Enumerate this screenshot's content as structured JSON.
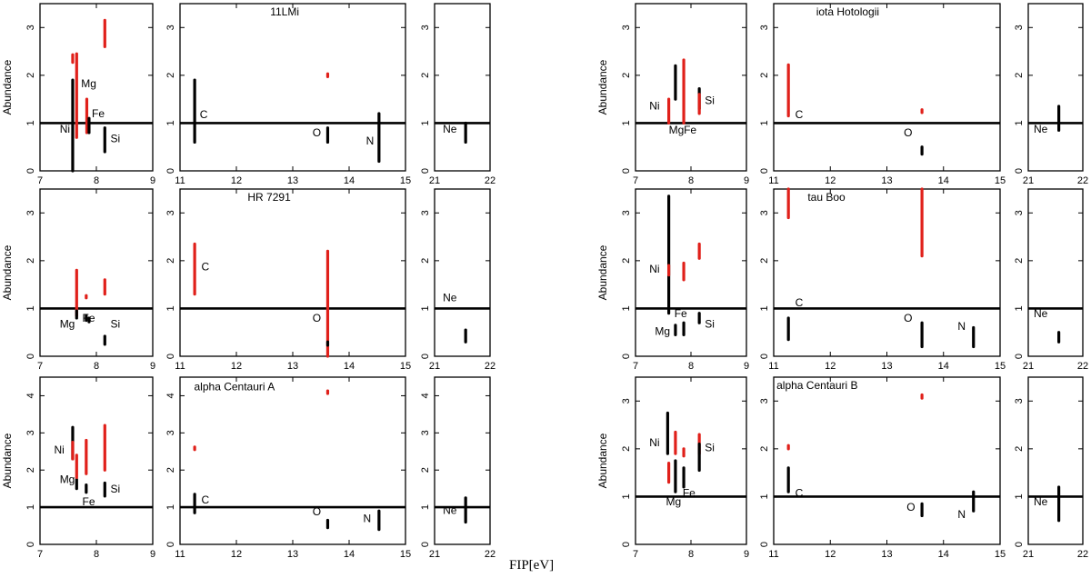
{
  "figure": {
    "xlabel": "FIP[eV]",
    "ylabel": "Abundance"
  },
  "colors": {
    "axis": "#000000",
    "black_bar": "#000000",
    "red_bar": "#e0201a"
  },
  "chart_data": [
    {
      "type": "scatter",
      "star": "11LMi",
      "ylim": [
        0,
        3.5
      ],
      "yticks": [
        0,
        1,
        2,
        3
      ],
      "panels": {
        "a": {
          "xlim": [
            7,
            9
          ],
          "xticks": [
            7,
            8,
            9
          ]
        },
        "b": {
          "xlim": [
            11,
            15
          ],
          "xticks": [
            11,
            12,
            13,
            14,
            15
          ]
        },
        "c": {
          "xlim": [
            21,
            22
          ],
          "xticks": [
            21,
            22
          ]
        }
      },
      "bars": [
        {
          "x": 7.58,
          "lo": 0.0,
          "hi": 1.9,
          "c": "black"
        },
        {
          "x": 7.58,
          "lo": 2.27,
          "hi": 2.43,
          "c": "red"
        },
        {
          "x": 7.65,
          "lo": 0.7,
          "hi": 2.45,
          "c": "red"
        },
        {
          "x": 7.83,
          "lo": 0.8,
          "hi": 1.5,
          "c": "red"
        },
        {
          "x": 7.87,
          "lo": 0.8,
          "hi": 1.1,
          "c": "black"
        },
        {
          "x": 8.15,
          "lo": 2.6,
          "hi": 3.15,
          "c": "red"
        },
        {
          "x": 8.15,
          "lo": 0.4,
          "hi": 0.9,
          "c": "black"
        },
        {
          "x": 11.26,
          "lo": 0.6,
          "hi": 1.9,
          "c": "black"
        },
        {
          "x": 13.62,
          "lo": 1.97,
          "hi": 2.03,
          "c": "red"
        },
        {
          "x": 13.62,
          "lo": 0.6,
          "hi": 0.9,
          "c": "black"
        },
        {
          "x": 14.53,
          "lo": 0.2,
          "hi": 1.2,
          "c": "black"
        },
        {
          "x": 21.56,
          "lo": 0.6,
          "hi": 1.0,
          "c": "black"
        }
      ],
      "labels": [
        {
          "p": "a",
          "x": 7.35,
          "y": 0.8,
          "t": "Ni"
        },
        {
          "p": "a",
          "x": 7.73,
          "y": 1.75,
          "t": "Mg"
        },
        {
          "p": "a",
          "x": 7.92,
          "y": 1.12,
          "t": "Fe"
        },
        {
          "p": "a",
          "x": 8.25,
          "y": 0.6,
          "t": "Si"
        },
        {
          "p": "b",
          "x": 11.35,
          "y": 1.1,
          "t": "C"
        },
        {
          "p": "b",
          "x": 13.35,
          "y": 0.72,
          "t": "O"
        },
        {
          "p": "b",
          "x": 14.3,
          "y": 0.55,
          "t": "N"
        },
        {
          "p": "c",
          "x": 21.15,
          "y": 0.8,
          "t": "Ne"
        },
        {
          "p": "b",
          "x": 12.6,
          "y": 3.25,
          "t": "11LMi"
        }
      ]
    },
    {
      "type": "scatter",
      "star": "iota Hotologii",
      "ylim": [
        0,
        3.5
      ],
      "yticks": [
        0,
        1,
        2,
        3
      ],
      "panels": {
        "a": {
          "xlim": [
            7,
            9
          ],
          "xticks": [
            7,
            8,
            9
          ]
        },
        "b": {
          "xlim": [
            11,
            15
          ],
          "xticks": [
            11,
            12,
            13,
            14,
            15
          ]
        },
        "c": {
          "xlim": [
            21,
            22
          ],
          "xticks": [
            21,
            22
          ]
        }
      },
      "bars": [
        {
          "x": 7.6,
          "lo": 1.0,
          "hi": 1.5,
          "c": "red"
        },
        {
          "x": 7.72,
          "lo": 1.5,
          "hi": 2.2,
          "c": "black"
        },
        {
          "x": 7.87,
          "lo": 1.0,
          "hi": 2.32,
          "c": "red"
        },
        {
          "x": 8.15,
          "lo": 1.3,
          "hi": 1.72,
          "c": "black"
        },
        {
          "x": 8.15,
          "lo": 1.2,
          "hi": 1.6,
          "c": "red"
        },
        {
          "x": 11.26,
          "lo": 1.15,
          "hi": 2.22,
          "c": "red"
        },
        {
          "x": 13.62,
          "lo": 1.22,
          "hi": 1.28,
          "c": "red"
        },
        {
          "x": 13.62,
          "lo": 0.35,
          "hi": 0.5,
          "c": "black"
        },
        {
          "x": 21.56,
          "lo": 0.85,
          "hi": 1.35,
          "c": "black"
        }
      ],
      "labels": [
        {
          "p": "a",
          "x": 7.25,
          "y": 1.28,
          "t": "Ni"
        },
        {
          "p": "a",
          "x": 7.6,
          "y": 0.78,
          "t": "Mg"
        },
        {
          "p": "a",
          "x": 7.87,
          "y": 0.78,
          "t": "Fe"
        },
        {
          "p": "a",
          "x": 8.25,
          "y": 1.4,
          "t": "Si"
        },
        {
          "p": "b",
          "x": 11.38,
          "y": 1.1,
          "t": "C"
        },
        {
          "p": "b",
          "x": 13.3,
          "y": 0.72,
          "t": "O"
        },
        {
          "p": "c",
          "x": 21.1,
          "y": 0.8,
          "t": "Ne"
        },
        {
          "p": "b",
          "x": 11.75,
          "y": 3.25,
          "t": "iota Hotologii"
        }
      ]
    },
    {
      "type": "scatter",
      "star": "HR 7291",
      "ylim": [
        0,
        3.5
      ],
      "yticks": [
        0,
        1,
        2,
        3
      ],
      "panels": {
        "a": {
          "xlim": [
            7,
            9
          ],
          "xticks": [
            7,
            8,
            9
          ]
        },
        "b": {
          "xlim": [
            11,
            15
          ],
          "xticks": [
            11,
            12,
            13,
            14,
            15
          ]
        },
        "c": {
          "xlim": [
            21,
            22
          ],
          "xticks": [
            21,
            22
          ]
        }
      },
      "bars": [
        {
          "x": 7.65,
          "lo": 0.85,
          "hi": 1.8,
          "c": "red"
        },
        {
          "x": 7.65,
          "lo": 0.8,
          "hi": 0.95,
          "c": "black"
        },
        {
          "x": 7.82,
          "lo": 1.23,
          "hi": 1.27,
          "c": "red"
        },
        {
          "x": 7.82,
          "lo": 0.75,
          "hi": 0.85,
          "c": "black"
        },
        {
          "x": 7.87,
          "lo": 0.72,
          "hi": 0.8,
          "c": "black"
        },
        {
          "x": 8.15,
          "lo": 1.3,
          "hi": 1.6,
          "c": "red"
        },
        {
          "x": 8.15,
          "lo": 0.25,
          "hi": 0.42,
          "c": "black"
        },
        {
          "x": 11.26,
          "lo": 1.3,
          "hi": 2.35,
          "c": "red"
        },
        {
          "x": 13.62,
          "lo": 0.0,
          "hi": 2.2,
          "c": "red"
        },
        {
          "x": 13.62,
          "lo": 0.23,
          "hi": 0.3,
          "c": "black"
        },
        {
          "x": 21.56,
          "lo": 0.3,
          "hi": 0.55,
          "c": "black"
        }
      ],
      "labels": [
        {
          "p": "a",
          "x": 7.35,
          "y": 0.6,
          "t": "Mg"
        },
        {
          "p": "a",
          "x": 7.75,
          "y": 0.72,
          "t": "Fe"
        },
        {
          "p": "a",
          "x": 8.25,
          "y": 0.6,
          "t": "Si"
        },
        {
          "p": "b",
          "x": 11.38,
          "y": 1.8,
          "t": "C"
        },
        {
          "p": "b",
          "x": 13.35,
          "y": 0.72,
          "t": "O"
        },
        {
          "p": "c",
          "x": 21.15,
          "y": 1.15,
          "t": "Ne"
        },
        {
          "p": "b",
          "x": 12.2,
          "y": 3.25,
          "t": "HR 7291"
        }
      ]
    },
    {
      "type": "scatter",
      "star": "tau Boo",
      "ylim": [
        0,
        3.5
      ],
      "yticks": [
        0,
        1,
        2,
        3
      ],
      "panels": {
        "a": {
          "xlim": [
            7,
            9
          ],
          "xticks": [
            7,
            8,
            9
          ]
        },
        "b": {
          "xlim": [
            11,
            15
          ],
          "xticks": [
            11,
            12,
            13,
            14,
            15
          ]
        },
        "c": {
          "xlim": [
            21,
            22
          ],
          "xticks": [
            21,
            22
          ]
        }
      },
      "bars": [
        {
          "x": 7.6,
          "lo": 0.9,
          "hi": 3.35,
          "c": "black"
        },
        {
          "x": 7.6,
          "lo": 1.7,
          "hi": 1.9,
          "c": "red"
        },
        {
          "x": 7.72,
          "lo": 0.45,
          "hi": 0.65,
          "c": "black"
        },
        {
          "x": 7.87,
          "lo": 1.6,
          "hi": 1.95,
          "c": "red"
        },
        {
          "x": 7.87,
          "lo": 0.45,
          "hi": 0.7,
          "c": "black"
        },
        {
          "x": 8.15,
          "lo": 2.05,
          "hi": 2.35,
          "c": "red"
        },
        {
          "x": 8.15,
          "lo": 0.7,
          "hi": 0.9,
          "c": "black"
        },
        {
          "x": 11.26,
          "lo": 2.9,
          "hi": 3.5,
          "c": "red"
        },
        {
          "x": 11.26,
          "lo": 0.35,
          "hi": 0.8,
          "c": "black"
        },
        {
          "x": 13.62,
          "lo": 2.1,
          "hi": 3.5,
          "c": "red"
        },
        {
          "x": 13.62,
          "lo": 0.2,
          "hi": 0.7,
          "c": "black"
        },
        {
          "x": 14.53,
          "lo": 0.2,
          "hi": 0.6,
          "c": "black"
        },
        {
          "x": 21.56,
          "lo": 0.3,
          "hi": 0.5,
          "c": "black"
        }
      ],
      "labels": [
        {
          "p": "a",
          "x": 7.25,
          "y": 1.75,
          "t": "Ni"
        },
        {
          "p": "a",
          "x": 7.35,
          "y": 0.45,
          "t": "Mg"
        },
        {
          "p": "a",
          "x": 7.7,
          "y": 0.82,
          "t": "Fe"
        },
        {
          "p": "a",
          "x": 8.25,
          "y": 0.6,
          "t": "Si"
        },
        {
          "p": "b",
          "x": 11.38,
          "y": 1.05,
          "t": "C"
        },
        {
          "p": "b",
          "x": 13.3,
          "y": 0.72,
          "t": "O"
        },
        {
          "p": "b",
          "x": 14.25,
          "y": 0.55,
          "t": "N"
        },
        {
          "p": "c",
          "x": 21.1,
          "y": 0.82,
          "t": "Ne"
        },
        {
          "p": "b",
          "x": 11.6,
          "y": 3.25,
          "t": "tau Boo"
        }
      ]
    },
    {
      "type": "scatter",
      "star": "alpha Centauri A",
      "ylim": [
        0,
        4.5
      ],
      "yticks": [
        0,
        1,
        2,
        3,
        4
      ],
      "panels": {
        "a": {
          "xlim": [
            7,
            9
          ],
          "xticks": [
            7,
            8,
            9
          ]
        },
        "b": {
          "xlim": [
            11,
            15
          ],
          "xticks": [
            11,
            12,
            13,
            14,
            15
          ]
        },
        "c": {
          "xlim": [
            21,
            22
          ],
          "xticks": [
            21,
            22
          ]
        }
      },
      "bars": [
        {
          "x": 7.58,
          "lo": 2.3,
          "hi": 3.15,
          "c": "black"
        },
        {
          "x": 7.58,
          "lo": 2.3,
          "hi": 2.75,
          "c": "red"
        },
        {
          "x": 7.65,
          "lo": 1.5,
          "hi": 1.75,
          "c": "black"
        },
        {
          "x": 7.65,
          "lo": 1.8,
          "hi": 2.4,
          "c": "red"
        },
        {
          "x": 7.82,
          "lo": 1.9,
          "hi": 2.8,
          "c": "red"
        },
        {
          "x": 7.82,
          "lo": 1.4,
          "hi": 1.6,
          "c": "black"
        },
        {
          "x": 8.15,
          "lo": 2.0,
          "hi": 3.2,
          "c": "red"
        },
        {
          "x": 8.15,
          "lo": 1.3,
          "hi": 1.65,
          "c": "black"
        },
        {
          "x": 11.26,
          "lo": 2.55,
          "hi": 2.62,
          "c": "red"
        },
        {
          "x": 11.26,
          "lo": 0.85,
          "hi": 1.35,
          "c": "black"
        },
        {
          "x": 13.62,
          "lo": 4.06,
          "hi": 4.13,
          "c": "red"
        },
        {
          "x": 13.62,
          "lo": 0.45,
          "hi": 0.65,
          "c": "black"
        },
        {
          "x": 14.53,
          "lo": 0.4,
          "hi": 0.9,
          "c": "black"
        },
        {
          "x": 21.56,
          "lo": 0.6,
          "hi": 1.25,
          "c": "black"
        }
      ],
      "labels": [
        {
          "p": "a",
          "x": 7.25,
          "y": 2.45,
          "t": "Ni"
        },
        {
          "p": "a",
          "x": 7.35,
          "y": 1.65,
          "t": "Mg"
        },
        {
          "p": "a",
          "x": 7.75,
          "y": 1.05,
          "t": "Fe"
        },
        {
          "p": "a",
          "x": 8.25,
          "y": 1.4,
          "t": "Si"
        },
        {
          "p": "b",
          "x": 11.38,
          "y": 1.1,
          "t": "C"
        },
        {
          "p": "b",
          "x": 13.35,
          "y": 0.78,
          "t": "O"
        },
        {
          "p": "b",
          "x": 14.25,
          "y": 0.6,
          "t": "N"
        },
        {
          "p": "c",
          "x": 21.15,
          "y": 0.82,
          "t": "Ne"
        },
        {
          "p": "b",
          "x": 11.25,
          "y": 4.15,
          "t": "alpha Centauri A"
        }
      ]
    },
    {
      "type": "scatter",
      "star": "alpha Centauri B",
      "ylim": [
        0,
        3.5
      ],
      "yticks": [
        0,
        1,
        2,
        3
      ],
      "panels": {
        "a": {
          "xlim": [
            7,
            9
          ],
          "xticks": [
            7,
            8,
            9
          ]
        },
        "b": {
          "xlim": [
            11,
            15
          ],
          "xticks": [
            11,
            12,
            13,
            14,
            15
          ]
        },
        "c": {
          "xlim": [
            21,
            22
          ],
          "xticks": [
            21,
            22
          ]
        }
      },
      "bars": [
        {
          "x": 7.58,
          "lo": 1.9,
          "hi": 2.75,
          "c": "black"
        },
        {
          "x": 7.6,
          "lo": 1.3,
          "hi": 1.7,
          "c": "red"
        },
        {
          "x": 7.72,
          "lo": 1.9,
          "hi": 2.35,
          "c": "red"
        },
        {
          "x": 7.72,
          "lo": 1.1,
          "hi": 1.75,
          "c": "black"
        },
        {
          "x": 7.87,
          "lo": 1.85,
          "hi": 2.0,
          "c": "red"
        },
        {
          "x": 7.87,
          "lo": 1.2,
          "hi": 1.6,
          "c": "black"
        },
        {
          "x": 8.15,
          "lo": 1.9,
          "hi": 2.3,
          "c": "red"
        },
        {
          "x": 8.15,
          "lo": 1.55,
          "hi": 2.1,
          "c": "black"
        },
        {
          "x": 11.26,
          "lo": 2.0,
          "hi": 2.07,
          "c": "red"
        },
        {
          "x": 11.26,
          "lo": 1.1,
          "hi": 1.6,
          "c": "black"
        },
        {
          "x": 13.62,
          "lo": 3.06,
          "hi": 3.13,
          "c": "red"
        },
        {
          "x": 13.62,
          "lo": 0.6,
          "hi": 0.85,
          "c": "black"
        },
        {
          "x": 14.53,
          "lo": 0.7,
          "hi": 1.1,
          "c": "black"
        },
        {
          "x": 21.56,
          "lo": 0.5,
          "hi": 1.2,
          "c": "black"
        }
      ],
      "labels": [
        {
          "p": "a",
          "x": 7.25,
          "y": 2.05,
          "t": "Ni"
        },
        {
          "p": "a",
          "x": 7.55,
          "y": 0.82,
          "t": "Mg"
        },
        {
          "p": "a",
          "x": 7.85,
          "y": 1.0,
          "t": "Fe"
        },
        {
          "p": "a",
          "x": 8.25,
          "y": 1.95,
          "t": "Si"
        },
        {
          "p": "b",
          "x": 11.38,
          "y": 1.0,
          "t": "C"
        },
        {
          "p": "b",
          "x": 13.35,
          "y": 0.7,
          "t": "O"
        },
        {
          "p": "b",
          "x": 14.25,
          "y": 0.55,
          "t": "N"
        },
        {
          "p": "c",
          "x": 21.1,
          "y": 0.82,
          "t": "Ne"
        },
        {
          "p": "b",
          "x": 11.05,
          "y": 3.25,
          "t": "alpha Centauri B"
        }
      ]
    }
  ]
}
